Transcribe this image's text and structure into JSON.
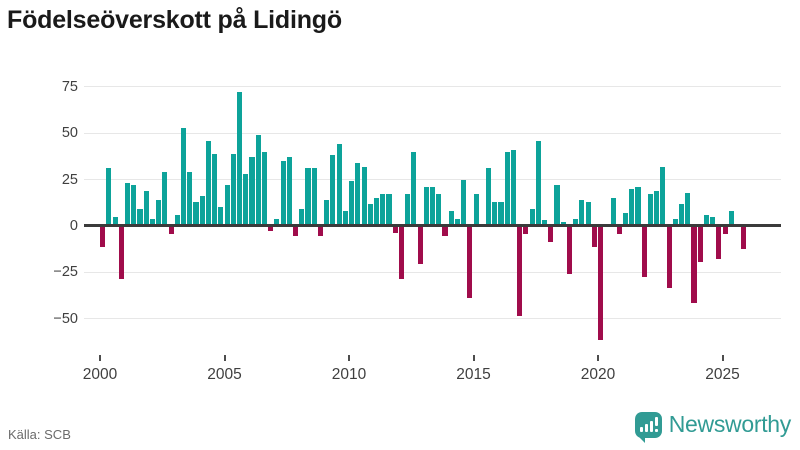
{
  "title": "Födelseöverskott på Lidingö",
  "source": "Källa: SCB",
  "branding": {
    "name": "Newsworthy",
    "icon": "newsworthy-speech-bubble-bars"
  },
  "colors": {
    "positive_bar": "#0da39a",
    "negative_bar": "#a00c4b",
    "brand_teal": "#319b94",
    "title_text": "#1a1a1a",
    "axis_text": "#3f3f3f",
    "gridline": "#e7e7e7",
    "zero_line": "#3b3b3b",
    "source_text": "#6b6b6b"
  },
  "chart_data": {
    "type": "bar",
    "frequency": "quarterly",
    "title": "Födelseöverskott på Lidingö",
    "xlabel": "",
    "ylabel": "",
    "grid": true,
    "legend": "none",
    "ylim": [
      -75,
      85
    ],
    "yticks": [
      75,
      50,
      25,
      0,
      -25,
      -50
    ],
    "ytick_labels": [
      "75",
      "50",
      "25",
      "0",
      "−25",
      "−50"
    ],
    "xticks": [
      2000,
      2005,
      2010,
      2015,
      2020,
      2025
    ],
    "xtick_labels": [
      "2000",
      "2005",
      "2010",
      "2015",
      "2020",
      "2025"
    ],
    "series_name": "Födelseöverskott per kvartal",
    "values_by_year": [
      {
        "year": 2000,
        "q": [
          -11,
          31,
          5,
          -28
        ]
      },
      {
        "year": 2001,
        "q": [
          23,
          22,
          9,
          19
        ]
      },
      {
        "year": 2002,
        "q": [
          4,
          14,
          29,
          -4
        ]
      },
      {
        "year": 2003,
        "q": [
          6,
          53,
          29,
          13
        ]
      },
      {
        "year": 2004,
        "q": [
          16,
          46,
          39,
          10
        ]
      },
      {
        "year": 2005,
        "q": [
          22,
          39,
          72,
          28
        ]
      },
      {
        "year": 2006,
        "q": [
          37,
          49,
          40,
          -2
        ]
      },
      {
        "year": 2007,
        "q": [
          4,
          35,
          37,
          -5
        ]
      },
      {
        "year": 2008,
        "q": [
          9,
          31,
          31,
          -5
        ]
      },
      {
        "year": 2009,
        "q": [
          14,
          38,
          44,
          8
        ]
      },
      {
        "year": 2010,
        "q": [
          24,
          34,
          32,
          12
        ]
      },
      {
        "year": 2011,
        "q": [
          15,
          17,
          17,
          -3
        ]
      },
      {
        "year": 2012,
        "q": [
          -28,
          17,
          40,
          -20
        ]
      },
      {
        "year": 2013,
        "q": [
          21,
          21,
          17,
          -5
        ]
      },
      {
        "year": 2014,
        "q": [
          8,
          4,
          25,
          -38
        ]
      },
      {
        "year": 2015,
        "q": [
          17,
          1,
          31,
          13
        ]
      },
      {
        "year": 2016,
        "q": [
          13,
          40,
          41,
          -48
        ]
      },
      {
        "year": 2017,
        "q": [
          -4,
          9,
          46,
          3
        ]
      },
      {
        "year": 2018,
        "q": [
          -8,
          22,
          2,
          -25
        ]
      },
      {
        "year": 2019,
        "q": [
          4,
          14,
          13,
          -11
        ]
      },
      {
        "year": 2020,
        "q": [
          -61,
          0,
          15,
          -4
        ]
      },
      {
        "year": 2021,
        "q": [
          7,
          20,
          21,
          -27
        ]
      },
      {
        "year": 2022,
        "q": [
          17,
          19,
          32,
          -33
        ]
      },
      {
        "year": 2023,
        "q": [
          4,
          12,
          18,
          -41
        ]
      },
      {
        "year": 2024,
        "q": [
          -19,
          6,
          5,
          -17
        ]
      },
      {
        "year": 2025,
        "q": [
          -4,
          8,
          0,
          -12
        ]
      }
    ]
  }
}
